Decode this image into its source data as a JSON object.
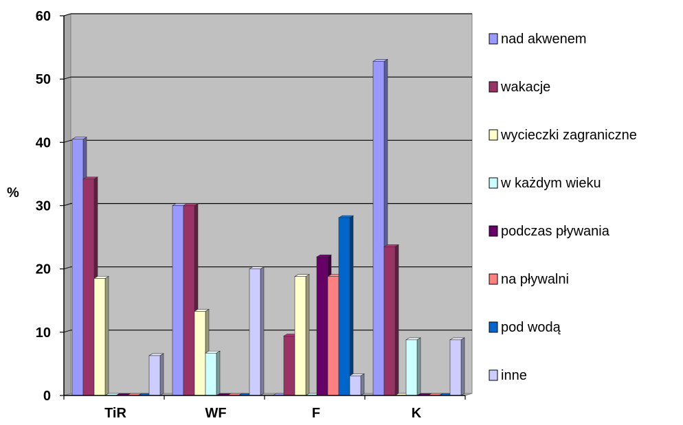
{
  "chart_data": {
    "type": "bar",
    "title": "",
    "xlabel": "",
    "ylabel": "%",
    "ylim": [
      0,
      60
    ],
    "yticks": [
      0,
      10,
      20,
      30,
      40,
      50,
      60
    ],
    "grid": true,
    "legend_position": "right",
    "categories": [
      "TiR",
      "WF",
      "F",
      "K"
    ],
    "series": [
      {
        "name": "nad akwenem",
        "color": "#9999FF",
        "values": [
          40.5,
          30,
          0,
          52.8
        ]
      },
      {
        "name": "wakacje",
        "color": "#993366",
        "values": [
          34.2,
          30,
          9.4,
          23.5
        ]
      },
      {
        "name": "wycieczki zagraniczne",
        "color": "#FFFFCC",
        "values": [
          18.5,
          13.3,
          18.8,
          0
        ]
      },
      {
        "name": "w każdym wieku",
        "color": "#CCFFFF",
        "values": [
          0,
          6.7,
          0,
          8.8
        ]
      },
      {
        "name": "podczas pływania",
        "color": "#660066",
        "values": [
          0,
          0,
          21.9,
          0
        ]
      },
      {
        "name": "na pływalni",
        "color": "#FF8080",
        "values": [
          0,
          0,
          18.8,
          0
        ]
      },
      {
        "name": "pod wodą",
        "color": "#0066CC",
        "values": [
          0,
          0,
          28.1,
          0
        ]
      },
      {
        "name": "inne",
        "color": "#CCCCFF",
        "values": [
          6.3,
          20,
          3.1,
          8.8
        ]
      }
    ]
  }
}
